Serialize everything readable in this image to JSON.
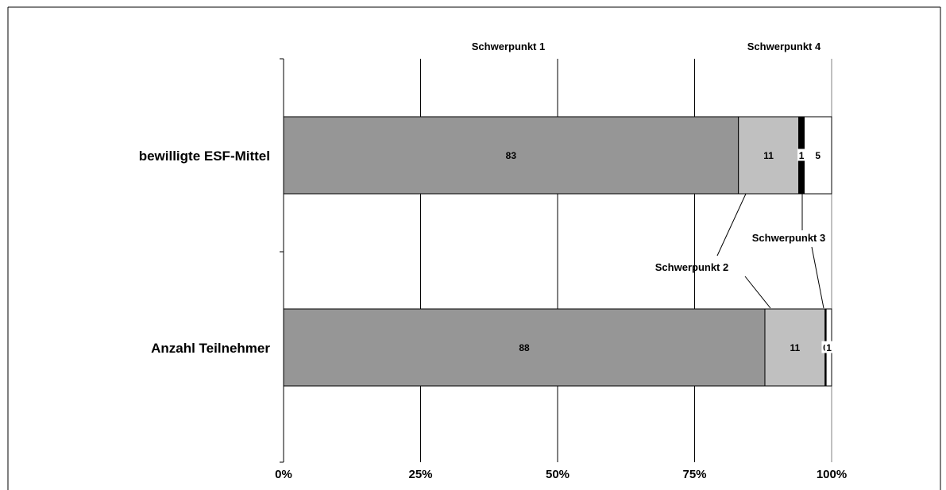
{
  "chart_data": {
    "type": "bar",
    "orientation": "horizontal",
    "stacked": "percent",
    "categories": [
      "bewilligte ESF-Mittel",
      "Anzahl Teilnehmer"
    ],
    "series": [
      {
        "name": "Schwerpunkt 1",
        "values": [
          83,
          88
        ],
        "color": "#969696",
        "value_labels": [
          "83",
          "88"
        ]
      },
      {
        "name": "Schwerpunkt 2",
        "values": [
          11,
          11
        ],
        "color": "#C0C0C0",
        "value_labels": [
          "11",
          "11"
        ]
      },
      {
        "name": "Schwerpunkt 3",
        "values": [
          1,
          0.2
        ],
        "color": "#000000",
        "value_labels": [
          "1",
          "0"
        ]
      },
      {
        "name": "Schwerpunkt 4",
        "values": [
          5,
          1
        ],
        "color": "#FFFFFF",
        "value_labels": [
          "5",
          "1"
        ]
      }
    ],
    "x_ticks": [
      "0%",
      "25%",
      "50%",
      "75%",
      "100%"
    ],
    "xlim": [
      0,
      100
    ],
    "grid": "vertical",
    "legend": "callout labels"
  }
}
